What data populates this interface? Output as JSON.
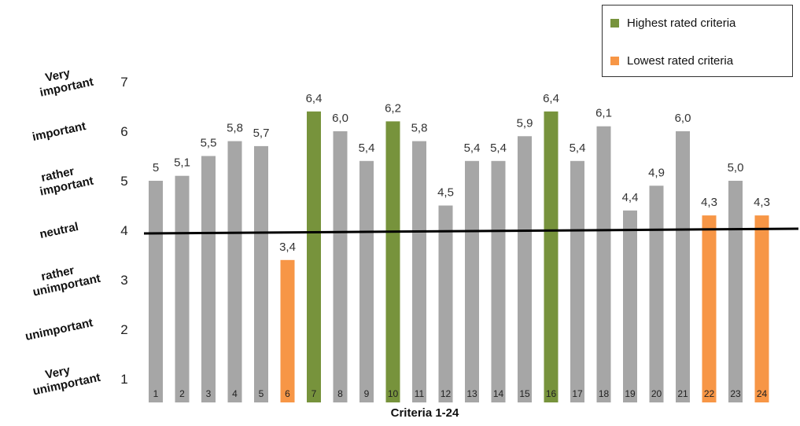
{
  "chart_data": {
    "type": "bar",
    "title": "",
    "xlabel": "Criteria 1-24",
    "ylabel": "",
    "ylim": [
      1,
      7
    ],
    "yticks": [
      1,
      2,
      3,
      4,
      5,
      6,
      7
    ],
    "rating_labels": [
      {
        "value": 7,
        "lines": [
          "Very",
          "important"
        ]
      },
      {
        "value": 6,
        "lines": [
          "important"
        ]
      },
      {
        "value": 5,
        "lines": [
          "rather",
          "important"
        ]
      },
      {
        "value": 4,
        "lines": [
          "neutral"
        ]
      },
      {
        "value": 3,
        "lines": [
          "rather",
          "unimportant"
        ]
      },
      {
        "value": 2,
        "lines": [
          "unimportant"
        ]
      },
      {
        "value": 1,
        "lines": [
          "Very",
          "unimportant"
        ]
      }
    ],
    "categories": [
      "1",
      "2",
      "3",
      "4",
      "5",
      "6",
      "7",
      "8",
      "9",
      "10",
      "11",
      "12",
      "13",
      "14",
      "15",
      "16",
      "17",
      "18",
      "19",
      "20",
      "21",
      "22",
      "23",
      "24"
    ],
    "values": [
      5.0,
      5.1,
      5.5,
      5.8,
      5.7,
      3.4,
      6.4,
      6.0,
      5.4,
      6.2,
      5.8,
      4.5,
      5.4,
      5.4,
      5.9,
      6.4,
      5.4,
      6.1,
      4.4,
      4.9,
      6.0,
      4.3,
      5.0,
      4.3
    ],
    "value_labels": [
      "5",
      "5,1",
      "5,5",
      "5,8",
      "5,7",
      "3,4",
      "6,4",
      "6,0",
      "5,4",
      "6,2",
      "5,8",
      "4,5",
      "5,4",
      "5,4",
      "5,9",
      "6,4",
      "5,4",
      "6,1",
      "4,4",
      "4,9",
      "6,0",
      "4,3",
      "5,0",
      "4,3"
    ],
    "highest": [
      "7",
      "10",
      "16"
    ],
    "lowest": [
      "6",
      "22",
      "24"
    ],
    "reference_line": 4,
    "grid": false,
    "legend_position": "top-right",
    "legend": [
      {
        "label": "Highest rated criteria",
        "color": "#77933c"
      },
      {
        "label": "Lowest rated criteria",
        "color": "#f79646"
      }
    ],
    "colors": {
      "default": "#a6a6a6",
      "highest": "#77933c",
      "lowest": "#f79646",
      "line": "#000000"
    }
  }
}
